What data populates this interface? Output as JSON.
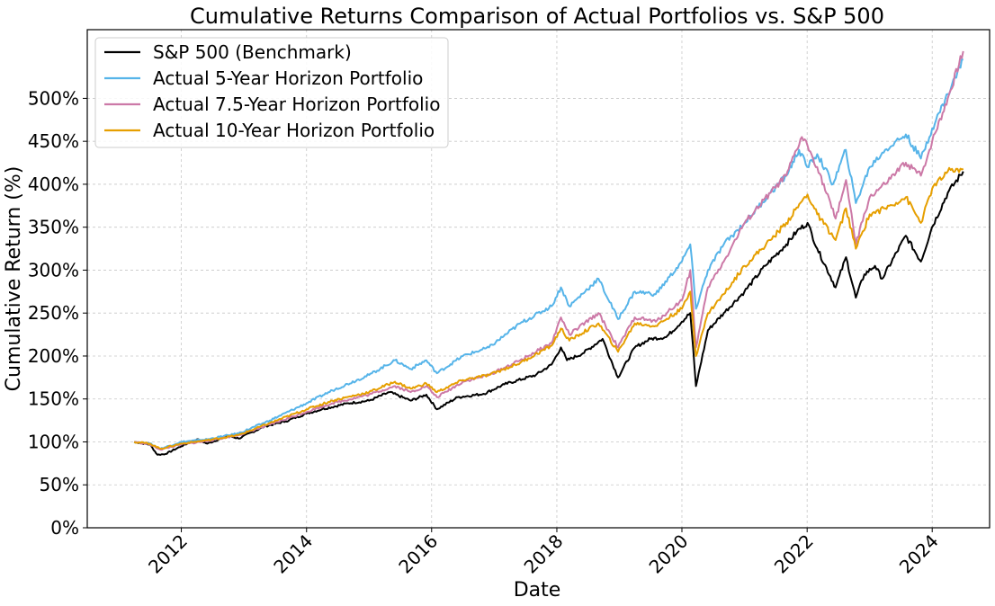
{
  "chart_data": {
    "type": "line",
    "title": "Cumulative Returns Comparison of Actual Portfolios vs. S&P 500",
    "xlabel": "Date",
    "ylabel": "Cumulative Return (%)",
    "xlim": [
      "2010-07-01",
      "2024-12-01"
    ],
    "ylim": [
      0,
      580
    ],
    "x_ticks": [
      "2012",
      "2014",
      "2016",
      "2018",
      "2020",
      "2022",
      "2024"
    ],
    "y_ticks": [
      "0%",
      "50%",
      "100%",
      "150%",
      "200%",
      "250%",
      "300%",
      "350%",
      "400%",
      "450%",
      "500%"
    ],
    "grid": true,
    "legend_position": "upper-left",
    "series": [
      {
        "name": "S&P 500 (Benchmark)",
        "color": "#000000",
        "points": [
          [
            "2011-04-01",
            100
          ],
          [
            "2011-07-01",
            97
          ],
          [
            "2011-08-15",
            85
          ],
          [
            "2011-10-01",
            86
          ],
          [
            "2012-01-01",
            95
          ],
          [
            "2012-04-01",
            103
          ],
          [
            "2012-06-01",
            98
          ],
          [
            "2012-10-01",
            107
          ],
          [
            "2012-12-01",
            104
          ],
          [
            "2013-05-01",
            118
          ],
          [
            "2013-09-01",
            124
          ],
          [
            "2014-01-01",
            133
          ],
          [
            "2014-04-01",
            138
          ],
          [
            "2014-09-01",
            145
          ],
          [
            "2015-01-01",
            148
          ],
          [
            "2015-05-01",
            158
          ],
          [
            "2015-09-01",
            148
          ],
          [
            "2015-12-01",
            155
          ],
          [
            "2016-02-01",
            138
          ],
          [
            "2016-06-01",
            152
          ],
          [
            "2016-11-01",
            156
          ],
          [
            "2017-03-01",
            167
          ],
          [
            "2017-09-01",
            178
          ],
          [
            "2017-12-01",
            190
          ],
          [
            "2018-01-25",
            210
          ],
          [
            "2018-03-01",
            195
          ],
          [
            "2018-06-01",
            203
          ],
          [
            "2018-09-25",
            220
          ],
          [
            "2018-12-24",
            175
          ],
          [
            "2019-04-01",
            210
          ],
          [
            "2019-07-01",
            220
          ],
          [
            "2019-10-01",
            222
          ],
          [
            "2020-01-01",
            240
          ],
          [
            "2020-02-19",
            250
          ],
          [
            "2020-03-23",
            165
          ],
          [
            "2020-06-01",
            230
          ],
          [
            "2020-09-01",
            250
          ],
          [
            "2020-12-31",
            275
          ],
          [
            "2021-05-01",
            305
          ],
          [
            "2021-09-01",
            330
          ],
          [
            "2021-11-01",
            345
          ],
          [
            "2022-01-03",
            355
          ],
          [
            "2022-03-01",
            325
          ],
          [
            "2022-06-16",
            280
          ],
          [
            "2022-08-16",
            315
          ],
          [
            "2022-10-12",
            268
          ],
          [
            "2022-12-01",
            295
          ],
          [
            "2023-02-01",
            305
          ],
          [
            "2023-03-15",
            290
          ],
          [
            "2023-07-31",
            340
          ],
          [
            "2023-10-27",
            310
          ],
          [
            "2023-12-31",
            350
          ],
          [
            "2024-04-01",
            390
          ],
          [
            "2024-06-30",
            415
          ]
        ]
      },
      {
        "name": "Actual 5-Year Horizon Portfolio",
        "color": "#56B4E9",
        "points": [
          [
            "2011-04-01",
            100
          ],
          [
            "2011-07-01",
            98
          ],
          [
            "2011-09-01",
            92
          ],
          [
            "2012-01-01",
            100
          ],
          [
            "2012-06-01",
            103
          ],
          [
            "2012-12-01",
            110
          ],
          [
            "2013-06-01",
            125
          ],
          [
            "2014-01-01",
            145
          ],
          [
            "2014-06-01",
            160
          ],
          [
            "2015-01-01",
            178
          ],
          [
            "2015-06-01",
            195
          ],
          [
            "2015-09-01",
            185
          ],
          [
            "2015-12-01",
            195
          ],
          [
            "2016-02-01",
            180
          ],
          [
            "2016-07-01",
            200
          ],
          [
            "2016-12-01",
            210
          ],
          [
            "2017-06-01",
            238
          ],
          [
            "2017-12-01",
            258
          ],
          [
            "2018-01-25",
            280
          ],
          [
            "2018-03-15",
            258
          ],
          [
            "2018-09-01",
            290
          ],
          [
            "2018-12-24",
            243
          ],
          [
            "2019-04-01",
            275
          ],
          [
            "2019-08-01",
            272
          ],
          [
            "2020-01-01",
            310
          ],
          [
            "2020-02-19",
            330
          ],
          [
            "2020-03-23",
            255
          ],
          [
            "2020-06-01",
            300
          ],
          [
            "2020-09-01",
            330
          ],
          [
            "2021-01-01",
            355
          ],
          [
            "2021-06-01",
            390
          ],
          [
            "2021-09-01",
            410
          ],
          [
            "2021-11-15",
            440
          ],
          [
            "2022-01-01",
            420
          ],
          [
            "2022-03-01",
            435
          ],
          [
            "2022-06-01",
            400
          ],
          [
            "2022-08-15",
            440
          ],
          [
            "2022-10-12",
            378
          ],
          [
            "2023-01-01",
            420
          ],
          [
            "2023-04-01",
            440
          ],
          [
            "2023-07-31",
            458
          ],
          [
            "2023-10-27",
            430
          ],
          [
            "2024-01-01",
            465
          ],
          [
            "2024-04-01",
            505
          ],
          [
            "2024-06-30",
            545
          ]
        ]
      },
      {
        "name": "Actual 7.5-Year Horizon Portfolio",
        "color": "#CC79A7",
        "points": [
          [
            "2011-04-01",
            100
          ],
          [
            "2011-07-01",
            97
          ],
          [
            "2011-09-01",
            91
          ],
          [
            "2012-01-01",
            97
          ],
          [
            "2012-06-01",
            101
          ],
          [
            "2012-12-01",
            108
          ],
          [
            "2013-06-01",
            120
          ],
          [
            "2014-01-01",
            135
          ],
          [
            "2014-06-01",
            145
          ],
          [
            "2015-01-01",
            155
          ],
          [
            "2015-06-01",
            165
          ],
          [
            "2015-09-01",
            158
          ],
          [
            "2015-12-01",
            165
          ],
          [
            "2016-02-01",
            152
          ],
          [
            "2016-07-01",
            170
          ],
          [
            "2016-12-01",
            178
          ],
          [
            "2017-06-01",
            195
          ],
          [
            "2017-12-01",
            215
          ],
          [
            "2018-01-25",
            245
          ],
          [
            "2018-03-15",
            225
          ],
          [
            "2018-09-01",
            250
          ],
          [
            "2018-12-24",
            210
          ],
          [
            "2019-04-01",
            245
          ],
          [
            "2019-08-01",
            240
          ],
          [
            "2020-01-01",
            265
          ],
          [
            "2020-02-19",
            300
          ],
          [
            "2020-03-23",
            210
          ],
          [
            "2020-06-01",
            280
          ],
          [
            "2020-09-01",
            310
          ],
          [
            "2021-01-01",
            355
          ],
          [
            "2021-06-01",
            390
          ],
          [
            "2021-09-01",
            410
          ],
          [
            "2021-12-01",
            455
          ],
          [
            "2022-01-03",
            445
          ],
          [
            "2022-03-01",
            420
          ],
          [
            "2022-06-16",
            360
          ],
          [
            "2022-08-16",
            405
          ],
          [
            "2022-10-12",
            330
          ],
          [
            "2023-01-01",
            385
          ],
          [
            "2023-04-01",
            400
          ],
          [
            "2023-07-31",
            425
          ],
          [
            "2023-10-27",
            410
          ],
          [
            "2024-01-01",
            450
          ],
          [
            "2024-04-01",
            500
          ],
          [
            "2024-06-30",
            555
          ]
        ]
      },
      {
        "name": "Actual 10-Year Horizon Portfolio",
        "color": "#E69F00",
        "points": [
          [
            "2011-04-01",
            100
          ],
          [
            "2011-07-01",
            98
          ],
          [
            "2011-09-01",
            92
          ],
          [
            "2012-01-01",
            98
          ],
          [
            "2012-06-01",
            102
          ],
          [
            "2012-12-01",
            108
          ],
          [
            "2013-06-01",
            122
          ],
          [
            "2014-01-01",
            138
          ],
          [
            "2014-06-01",
            148
          ],
          [
            "2015-01-01",
            158
          ],
          [
            "2015-06-01",
            170
          ],
          [
            "2015-09-01",
            162
          ],
          [
            "2015-12-01",
            168
          ],
          [
            "2016-02-01",
            158
          ],
          [
            "2016-07-01",
            172
          ],
          [
            "2016-12-01",
            178
          ],
          [
            "2017-06-01",
            192
          ],
          [
            "2017-12-01",
            212
          ],
          [
            "2018-01-25",
            232
          ],
          [
            "2018-03-15",
            218
          ],
          [
            "2018-09-01",
            238
          ],
          [
            "2018-12-24",
            205
          ],
          [
            "2019-04-01",
            238
          ],
          [
            "2019-08-01",
            235
          ],
          [
            "2020-01-01",
            255
          ],
          [
            "2020-02-19",
            275
          ],
          [
            "2020-03-23",
            200
          ],
          [
            "2020-06-01",
            250
          ],
          [
            "2020-09-01",
            272
          ],
          [
            "2021-01-01",
            305
          ],
          [
            "2021-06-01",
            335
          ],
          [
            "2021-09-01",
            355
          ],
          [
            "2021-12-01",
            380
          ],
          [
            "2022-01-03",
            388
          ],
          [
            "2022-03-01",
            365
          ],
          [
            "2022-06-16",
            335
          ],
          [
            "2022-08-16",
            372
          ],
          [
            "2022-10-12",
            325
          ],
          [
            "2023-01-01",
            365
          ],
          [
            "2023-04-01",
            372
          ],
          [
            "2023-07-31",
            385
          ],
          [
            "2023-10-27",
            355
          ],
          [
            "2024-01-01",
            395
          ],
          [
            "2024-04-01",
            415
          ],
          [
            "2024-06-30",
            418
          ]
        ]
      }
    ]
  }
}
